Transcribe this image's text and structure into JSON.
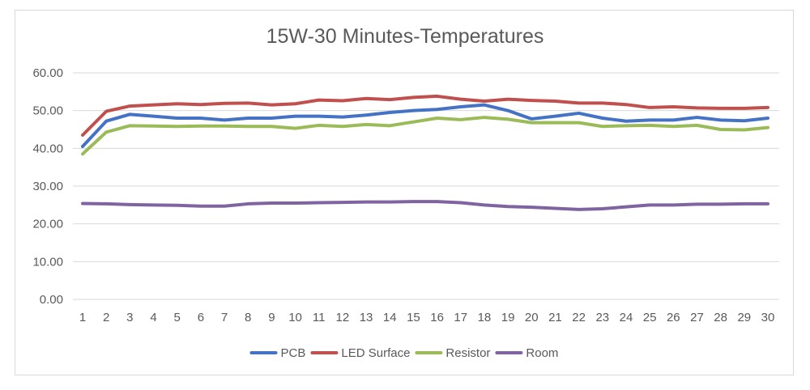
{
  "chart_data": {
    "type": "line",
    "title": "15W-30 Minutes-Temperatures",
    "xlabel": "",
    "ylabel": "",
    "x": [
      1,
      2,
      3,
      4,
      5,
      6,
      7,
      8,
      9,
      10,
      11,
      12,
      13,
      14,
      15,
      16,
      17,
      18,
      19,
      20,
      21,
      22,
      23,
      24,
      25,
      26,
      27,
      28,
      29,
      30
    ],
    "ylim": [
      0,
      60
    ],
    "yticks": [
      "0.00",
      "10.00",
      "20.00",
      "30.00",
      "40.00",
      "50.00",
      "60.00"
    ],
    "grid": true,
    "legend_position": "bottom",
    "series": [
      {
        "name": "PCB",
        "color": "#4472c4",
        "values": [
          40.5,
          47.2,
          49.0,
          48.5,
          48.0,
          48.0,
          47.5,
          48.0,
          48.0,
          48.5,
          48.5,
          48.3,
          48.8,
          49.5,
          50.0,
          50.3,
          51.0,
          51.5,
          50.0,
          47.8,
          48.5,
          49.3,
          48.0,
          47.2,
          47.5,
          47.5,
          48.2,
          47.5,
          47.3,
          48.0
        ]
      },
      {
        "name": "LED Surface",
        "color": "#c0504d",
        "values": [
          43.5,
          49.8,
          51.2,
          51.5,
          51.8,
          51.6,
          51.9,
          52.0,
          51.5,
          51.8,
          52.8,
          52.6,
          53.2,
          52.9,
          53.5,
          53.8,
          53.0,
          52.5,
          53.0,
          52.7,
          52.5,
          52.0,
          52.0,
          51.6,
          50.8,
          51.0,
          50.7,
          50.6,
          50.6,
          50.8
        ]
      },
      {
        "name": "Resistor",
        "color": "#9bbb59",
        "values": [
          38.5,
          44.3,
          46.0,
          45.9,
          45.8,
          45.9,
          45.9,
          45.8,
          45.8,
          45.3,
          46.1,
          45.8,
          46.3,
          46.0,
          47.0,
          48.0,
          47.6,
          48.2,
          47.7,
          46.8,
          46.8,
          46.8,
          45.8,
          46.0,
          46.1,
          45.8,
          46.1,
          45.0,
          44.9,
          45.5
        ]
      },
      {
        "name": "Room",
        "color": "#8064a2",
        "values": [
          25.4,
          25.3,
          25.1,
          25.0,
          24.9,
          24.7,
          24.7,
          25.3,
          25.5,
          25.5,
          25.6,
          25.7,
          25.8,
          25.8,
          25.9,
          25.9,
          25.6,
          25.0,
          24.6,
          24.4,
          24.1,
          23.8,
          24.0,
          24.5,
          25.0,
          25.0,
          25.2,
          25.2,
          25.3,
          25.3
        ]
      }
    ]
  }
}
